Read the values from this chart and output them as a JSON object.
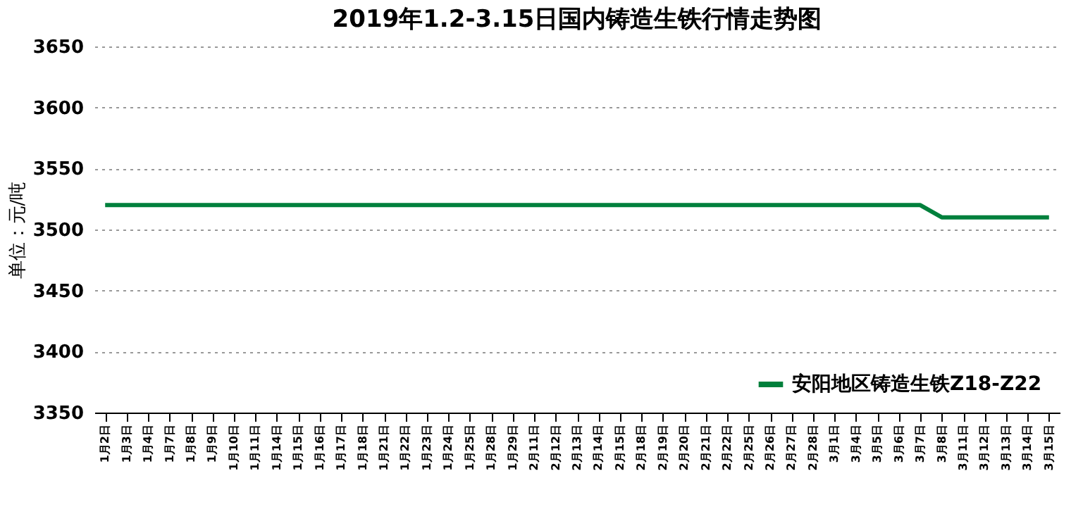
{
  "chart_data": {
    "type": "line",
    "title": "2019年1.2-3.15日国内铸造生铁行情走势图",
    "ylabel": "单位：元/吨",
    "categories": [
      "1月2日",
      "1月3日",
      "1月4日",
      "1月7日",
      "1月8日",
      "1月9日",
      "1月10日",
      "1月11日",
      "1月14日",
      "1月15日",
      "1月16日",
      "1月17日",
      "1月18日",
      "1月21日",
      "1月22日",
      "1月23日",
      "1月24日",
      "1月25日",
      "1月28日",
      "1月29日",
      "2月11日",
      "2月12日",
      "2月13日",
      "2月14日",
      "2月15日",
      "2月18日",
      "2月19日",
      "2月20日",
      "2月21日",
      "2月22日",
      "2月25日",
      "2月26日",
      "2月27日",
      "2月28日",
      "3月1日",
      "3月4日",
      "3月5日",
      "3月6日",
      "3月7日",
      "3月8日",
      "3月11日",
      "3月12日",
      "3月13日",
      "3月14日",
      "3月15日"
    ],
    "series": [
      {
        "name": "安阳地区铸造生铁Z18-Z22",
        "color": "#00803c",
        "values": [
          3520,
          3520,
          3520,
          3520,
          3520,
          3520,
          3520,
          3520,
          3520,
          3520,
          3520,
          3520,
          3520,
          3520,
          3520,
          3520,
          3520,
          3520,
          3520,
          3520,
          3520,
          3520,
          3520,
          3520,
          3520,
          3520,
          3520,
          3520,
          3520,
          3520,
          3520,
          3520,
          3520,
          3520,
          3520,
          3520,
          3520,
          3520,
          3520,
          3510,
          3510,
          3510,
          3510,
          3510,
          3510
        ]
      }
    ],
    "ylim": [
      3350,
      3650
    ],
    "yticks": [
      3350,
      3400,
      3450,
      3500,
      3550,
      3600,
      3650
    ],
    "grid": "y",
    "legend": "bottom right",
    "marker": "none",
    "line_style": "solid"
  }
}
